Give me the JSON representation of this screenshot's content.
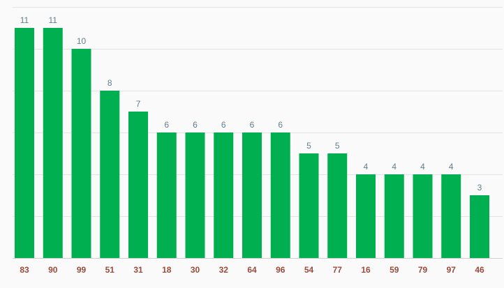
{
  "chart_data": {
    "type": "bar",
    "categories": [
      "83",
      "90",
      "99",
      "51",
      "31",
      "18",
      "30",
      "32",
      "64",
      "96",
      "54",
      "77",
      "16",
      "59",
      "79",
      "97",
      "46"
    ],
    "values": [
      11,
      11,
      10,
      8,
      7,
      6,
      6,
      6,
      6,
      6,
      5,
      5,
      4,
      4,
      4,
      4,
      3
    ],
    "ylim": [
      0,
      12
    ],
    "y_gridlines": [
      2,
      4,
      6,
      8,
      10,
      12
    ],
    "grid": true,
    "legend": "none",
    "data_labels": true,
    "colors": {
      "bar": "#00b050",
      "value_label": "#5f7f8c",
      "tick_label": "#9c4a3a",
      "gridline": "#e3e3e3"
    }
  }
}
